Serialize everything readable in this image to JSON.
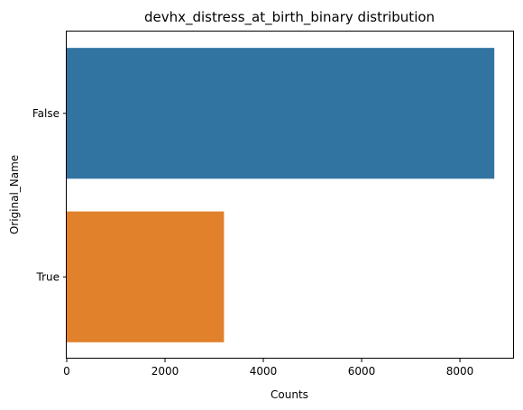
{
  "chart_data": {
    "type": "bar",
    "orientation": "horizontal",
    "title": "devhx_distress_at_birth_binary distribution",
    "xlabel": "Counts",
    "ylabel": "Original_Name",
    "categories": [
      "False",
      "True"
    ],
    "values": [
      8700,
      3200
    ],
    "colors": [
      "#3274a1",
      "#e1812c"
    ],
    "xlim": [
      0,
      9100
    ],
    "xticks": [
      0,
      2000,
      4000,
      6000,
      8000
    ],
    "grid": false,
    "legend": "none"
  }
}
